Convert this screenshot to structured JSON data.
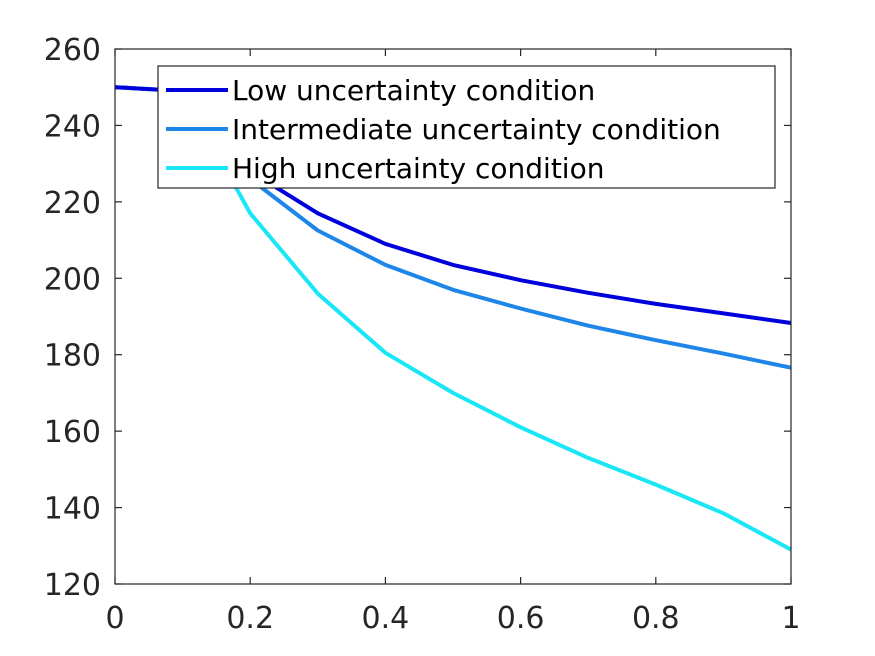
{
  "chart_data": {
    "type": "line",
    "title": "",
    "xlabel": "",
    "ylabel": "",
    "xlim": [
      0,
      1
    ],
    "ylim": [
      120,
      260
    ],
    "xticks": [
      0,
      0.2,
      0.4,
      0.6,
      0.8,
      1
    ],
    "xtick_labels": [
      "0",
      "0.2",
      "0.4",
      "0.6",
      "0.8",
      "1"
    ],
    "yticks": [
      120,
      140,
      160,
      180,
      200,
      220,
      240,
      260
    ],
    "ytick_labels": [
      "120",
      "140",
      "160",
      "180",
      "200",
      "220",
      "240",
      "260"
    ],
    "grid": false,
    "legend_position": "top-right",
    "x": [
      0,
      0.1,
      0.2,
      0.3,
      0.4,
      0.5,
      0.6,
      0.7,
      0.8,
      0.9,
      1.0
    ],
    "series": [
      {
        "name": "Low uncertainty condition",
        "color": "#0000dd",
        "values": [
          250,
          249,
          228,
          217,
          209,
          203.5,
          199.5,
          196.2,
          193.3,
          190.8,
          188.3
        ]
      },
      {
        "name": "Intermediate uncertainty condition",
        "color": "#1e86e8",
        "values": [
          250,
          249,
          226,
          212.5,
          203.5,
          197,
          192.1,
          187.6,
          183.8,
          180.3,
          176.6
        ]
      },
      {
        "name": "High uncertainty condition",
        "color": "#19e6f7",
        "values": [
          250,
          249,
          217,
          196,
          180.5,
          170,
          161,
          153,
          146,
          138.5,
          129
        ]
      }
    ]
  }
}
